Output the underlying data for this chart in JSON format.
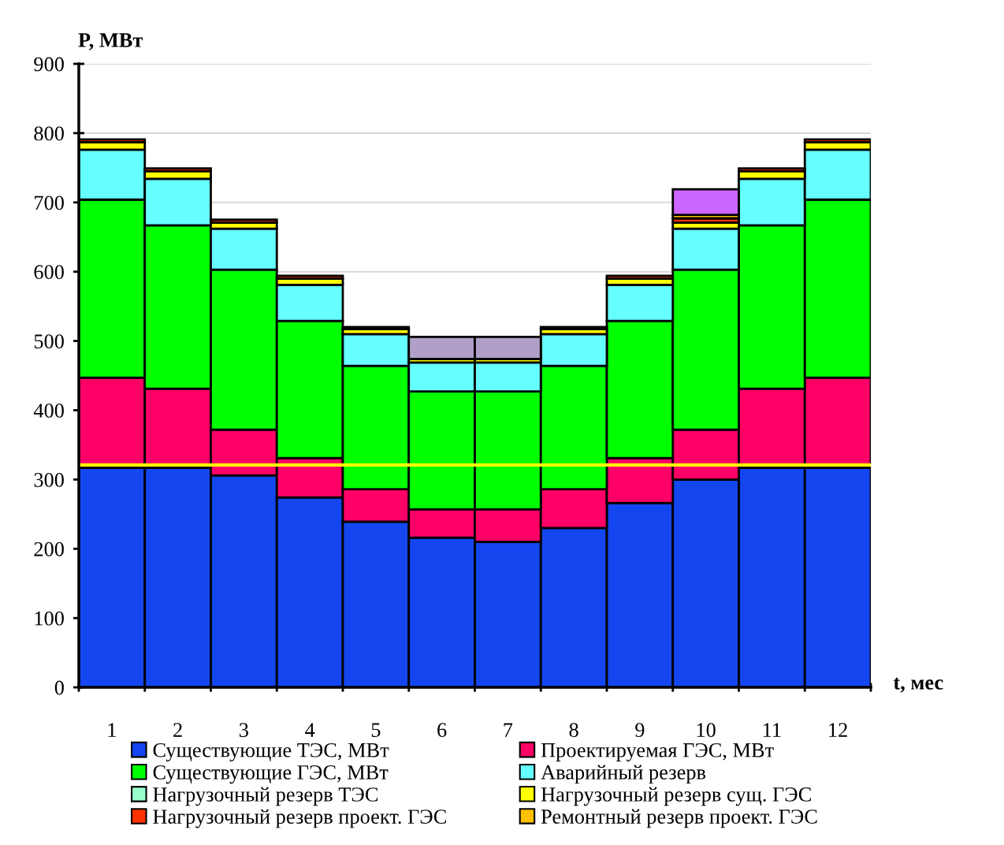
{
  "chart_data": {
    "type": "bar",
    "stacked": true,
    "xlabel": "t, мес",
    "ylabel": "P, МВт",
    "categories": [
      "1",
      "2",
      "3",
      "4",
      "5",
      "6",
      "7",
      "8",
      "9",
      "10",
      "11",
      "12"
    ],
    "ylim": [
      0,
      900
    ],
    "yticks": [
      0,
      100,
      200,
      300,
      400,
      500,
      600,
      700,
      800,
      900
    ],
    "grid": "y",
    "legend": "bottom",
    "series": [
      {
        "name": "Существующие ТЭС, МВт",
        "color": "#1446f0",
        "values": [
          317,
          317,
          306,
          274,
          239,
          216,
          210,
          230,
          266,
          300,
          317,
          317
        ]
      },
      {
        "name": "Проектируемая ГЭС, МВт",
        "color": "#ff0066",
        "values": [
          130,
          114,
          66,
          57,
          47,
          41,
          47,
          56,
          65,
          72,
          114,
          130
        ]
      },
      {
        "name": "Существующие ГЭС, МВт",
        "color": "#00ff00",
        "values": [
          257,
          236,
          231,
          198,
          178,
          170,
          170,
          178,
          198,
          231,
          236,
          257
        ]
      },
      {
        "name": "Аварийный резерв",
        "color": "#66ffff",
        "values": [
          72,
          67,
          59,
          52,
          46,
          42,
          42,
          46,
          52,
          59,
          67,
          72
        ]
      },
      {
        "name": "Нагрузочный резерв ТЭС",
        "color": "#99ffcc",
        "values": [
          null,
          null,
          null,
          null,
          null,
          null,
          null,
          null,
          null,
          null,
          null,
          null
        ]
      },
      {
        "name": "Нагрузочный резерв сущ. ГЭС",
        "color": "#ffff00",
        "values": [
          11,
          11,
          9,
          9,
          7,
          5,
          5,
          7,
          9,
          9,
          11,
          11
        ]
      },
      {
        "name": "Нагрузочный резерв проект. ГЭС",
        "color": "#ff3300",
        "values": [
          4,
          4,
          4,
          4,
          3,
          null,
          null,
          3,
          4,
          6,
          4,
          4
        ]
      },
      {
        "name": "Ремонтный резерв проект. ГЭС",
        "color": "#ffc000",
        "values": [
          null,
          null,
          null,
          null,
          null,
          null,
          null,
          null,
          null,
          5,
          null,
          null
        ]
      },
      {
        "color": "#b0a0c8",
        "values": [
          null,
          null,
          null,
          null,
          null,
          32,
          32,
          null,
          null,
          null,
          null,
          null
        ]
      },
      {
        "color": "#cc66ff",
        "values": [
          null,
          null,
          null,
          null,
          null,
          null,
          null,
          null,
          null,
          37,
          null,
          null
        ]
      }
    ],
    "ref_lines": [
      {
        "axis": "y",
        "value": 321,
        "color": "#ffff00"
      }
    ]
  }
}
